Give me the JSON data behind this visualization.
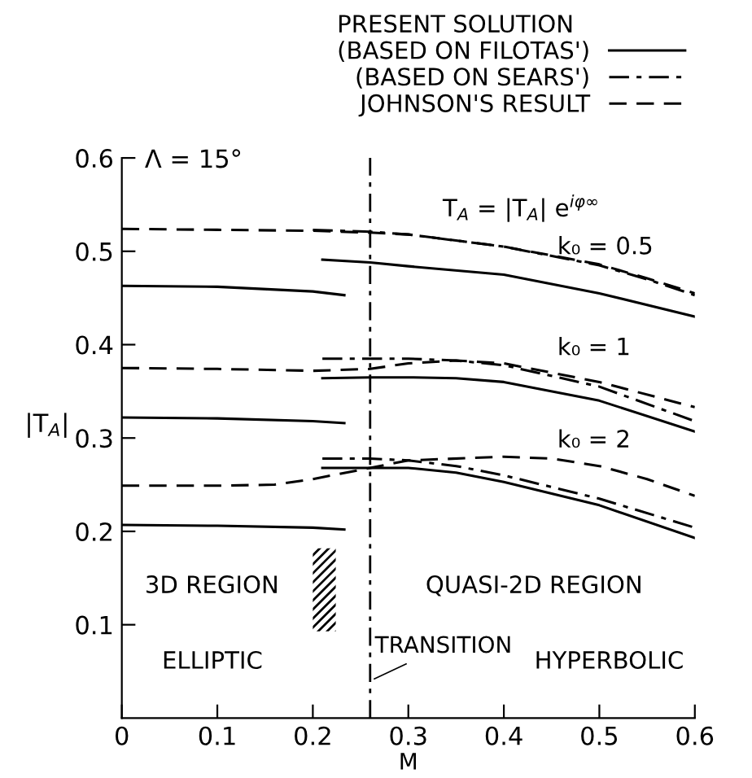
{
  "chart_data": {
    "type": "line",
    "xlabel": "M",
    "ylabel": "|T$_{A}$|",
    "legend_title": "PRESENT SOLUTION",
    "xlim": [
      0,
      0.6
    ],
    "ylim": [
      0,
      0.6
    ],
    "xticks": [
      0,
      0.1,
      0.2,
      0.3,
      0.4,
      0.5,
      0.6
    ],
    "yticks": [
      0.1,
      0.2,
      0.3,
      0.4,
      0.5,
      0.6
    ],
    "grid": false,
    "legend": "top right",
    "marker": "none",
    "series": [
      {
        "name": "(BASED ON FILOTAS')",
        "color": "#000000",
        "line_style": "solid",
        "x": [
          0.21,
          0.26,
          0.3,
          0.4,
          0.5,
          0.6
        ],
        "values": [
          0.491,
          0.488,
          0.484,
          0.475,
          0.455,
          0.43
        ]
      },
      {
        "color": "#000000",
        "line_style": "solid",
        "x": [
          0,
          0.1,
          0.2,
          0.233
        ],
        "values": [
          0.463,
          0.462,
          0.457,
          0.453
        ]
      },
      {
        "color": "#000000",
        "line_style": "solid",
        "x": [
          0.21,
          0.26,
          0.3,
          0.35,
          0.4,
          0.5,
          0.6
        ],
        "values": [
          0.364,
          0.365,
          0.365,
          0.364,
          0.36,
          0.34,
          0.307
        ]
      },
      {
        "color": "#000000",
        "line_style": "solid",
        "x": [
          0,
          0.1,
          0.2,
          0.233
        ],
        "values": [
          0.322,
          0.321,
          0.318,
          0.316
        ]
      },
      {
        "color": "#000000",
        "line_style": "solid",
        "x": [
          0.21,
          0.26,
          0.3,
          0.35,
          0.4,
          0.5,
          0.6
        ],
        "values": [
          0.268,
          0.268,
          0.268,
          0.263,
          0.253,
          0.228,
          0.193
        ]
      },
      {
        "color": "#000000",
        "line_style": "solid",
        "x": [
          0,
          0.1,
          0.2,
          0.233
        ],
        "values": [
          0.207,
          0.206,
          0.204,
          0.202
        ]
      },
      {
        "name": "(BASED ON SEARS')",
        "color": "#000000",
        "line_style": "dashdot",
        "x": [
          0.2,
          0.26,
          0.3,
          0.4,
          0.5,
          0.55,
          0.6
        ],
        "values": [
          0.523,
          0.521,
          0.518,
          0.505,
          0.485,
          0.47,
          0.453
        ]
      },
      {
        "color": "#000000",
        "line_style": "dashdot",
        "x": [
          0.21,
          0.3,
          0.35,
          0.4,
          0.5,
          0.6
        ],
        "values": [
          0.385,
          0.385,
          0.383,
          0.378,
          0.355,
          0.318
        ]
      },
      {
        "color": "#000000",
        "line_style": "dashdot",
        "x": [
          0.21,
          0.26,
          0.3,
          0.35,
          0.4,
          0.5,
          0.6
        ],
        "values": [
          0.278,
          0.278,
          0.276,
          0.27,
          0.26,
          0.235,
          0.204
        ]
      },
      {
        "name": "JOHNSON'S RESULT",
        "color": "#000000",
        "line_style": "dashed",
        "x": [
          0,
          0.1,
          0.2,
          0.26,
          0.3,
          0.4,
          0.5,
          0.55,
          0.6
        ],
        "values": [
          0.524,
          0.523,
          0.522,
          0.52,
          0.518,
          0.505,
          0.486,
          0.471,
          0.455
        ]
      },
      {
        "color": "#000000",
        "line_style": "dashed",
        "x": [
          0,
          0.1,
          0.2,
          0.26,
          0.3,
          0.35,
          0.4,
          0.5,
          0.6
        ],
        "values": [
          0.375,
          0.374,
          0.372,
          0.374,
          0.38,
          0.383,
          0.38,
          0.36,
          0.333
        ]
      },
      {
        "color": "#000000",
        "line_style": "dashed",
        "x": [
          0,
          0.1,
          0.16,
          0.2,
          0.26,
          0.3,
          0.4,
          0.45,
          0.5,
          0.55,
          0.6
        ],
        "values": [
          0.249,
          0.249,
          0.25,
          0.256,
          0.268,
          0.276,
          0.28,
          0.278,
          0.27,
          0.256,
          0.238
        ]
      }
    ],
    "ref_lines": [
      {
        "axis": "x",
        "value": 0.26,
        "label": "TRANSITION",
        "line_style": "dashdot",
        "color": "#000000"
      }
    ],
    "bands": [
      {
        "axis": "x",
        "from": 0.2,
        "to": 0.224,
        "color": "#000000"
      }
    ],
    "annotations": [
      "Λ = 15°",
      "T$_{A}$ = |T$_{A}$| e$^{iφ∞}$",
      "k₀ = 0.5",
      "k₀ = 1",
      "k₀ = 2",
      "3D REGION",
      "QUASI-2D REGION",
      "ELLIPTIC",
      "HYPERBOLIC"
    ]
  }
}
